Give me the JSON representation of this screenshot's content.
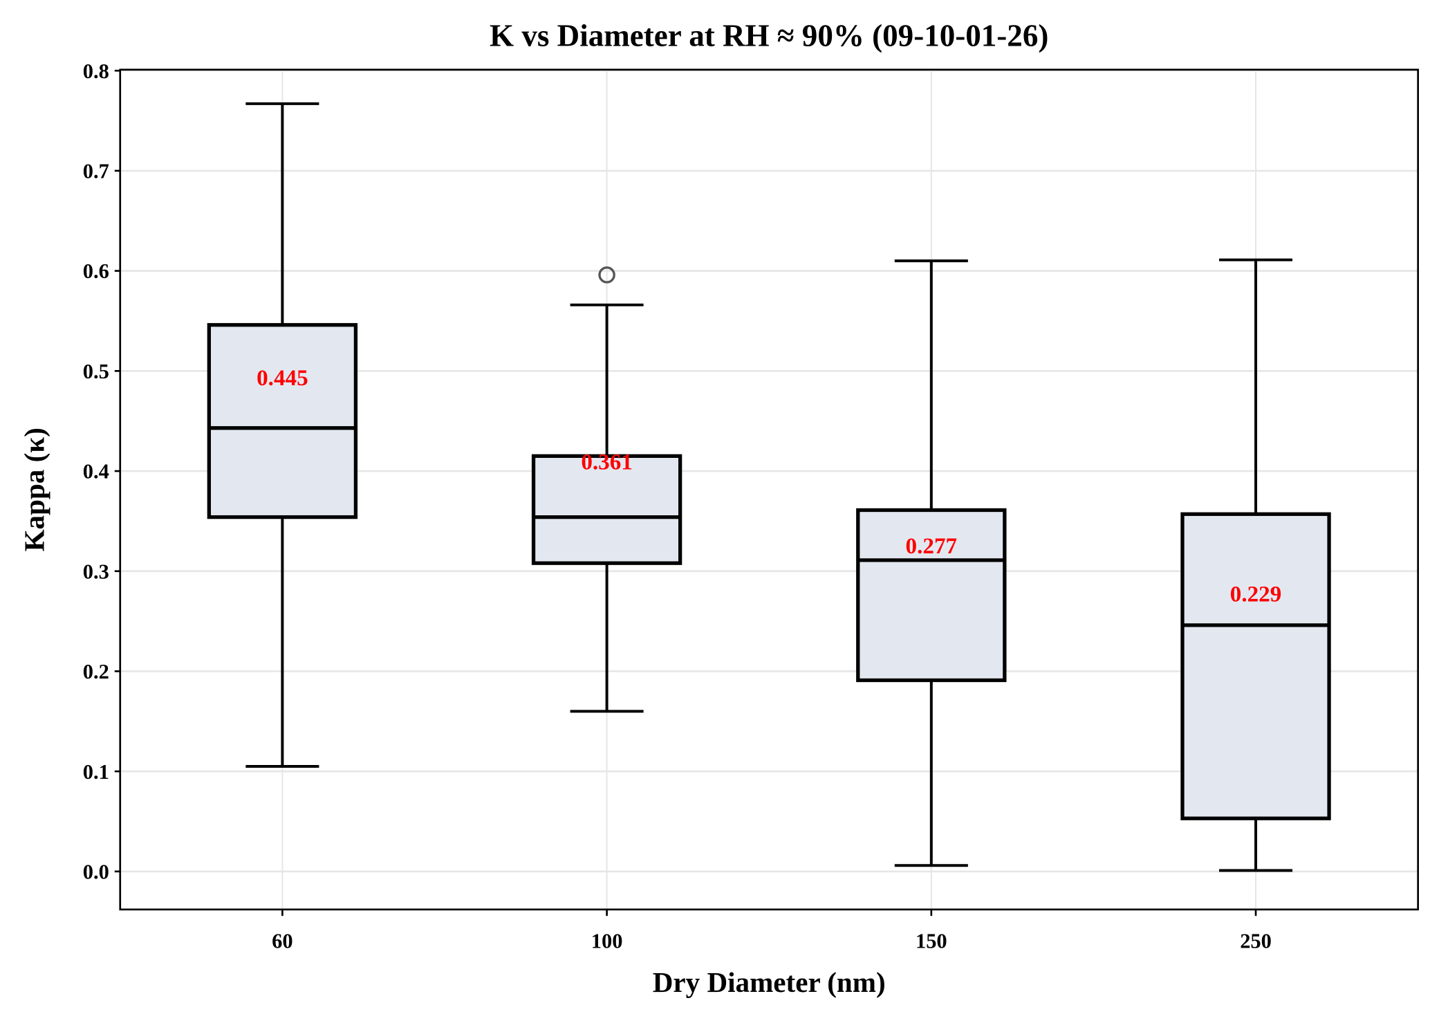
{
  "chart_data": {
    "type": "box",
    "title": "K vs Diameter at RH ≈ 90% (09-10-01-26)",
    "xlabel": "Dry Diameter (nm)",
    "ylabel": "Kappa (κ)",
    "categories": [
      "60",
      "100",
      "150",
      "250"
    ],
    "ylim": [
      -0.038,
      0.801
    ],
    "yticks": [
      "0.0",
      "0.1",
      "0.2",
      "0.3",
      "0.4",
      "0.5",
      "0.6",
      "0.7",
      "0.8"
    ],
    "grid": true,
    "boxes": [
      {
        "whisker_low": 0.105,
        "q1": 0.354,
        "median": 0.443,
        "q3": 0.546,
        "whisker_high": 0.767,
        "outliers": [],
        "mean_label": "0.445",
        "mean": 0.445
      },
      {
        "whisker_low": 0.16,
        "q1": 0.308,
        "median": 0.354,
        "q3": 0.415,
        "whisker_high": 0.566,
        "outliers": [
          0.596
        ],
        "mean_label": "0.361",
        "mean": 0.361
      },
      {
        "whisker_low": 0.006,
        "q1": 0.191,
        "median": 0.311,
        "q3": 0.361,
        "whisker_high": 0.61,
        "outliers": [],
        "mean_label": "0.277",
        "mean": 0.277
      },
      {
        "whisker_low": 0.001,
        "q1": 0.053,
        "median": 0.246,
        "q3": 0.357,
        "whisker_high": 0.611,
        "outliers": [],
        "mean_label": "0.229",
        "mean": 0.229
      }
    ],
    "colors": {
      "box_fill": "#e3e8f0",
      "box_edge": "#000000",
      "label": "#ff0000",
      "grid": "#e6e6e6",
      "outlier": "#555555"
    }
  }
}
